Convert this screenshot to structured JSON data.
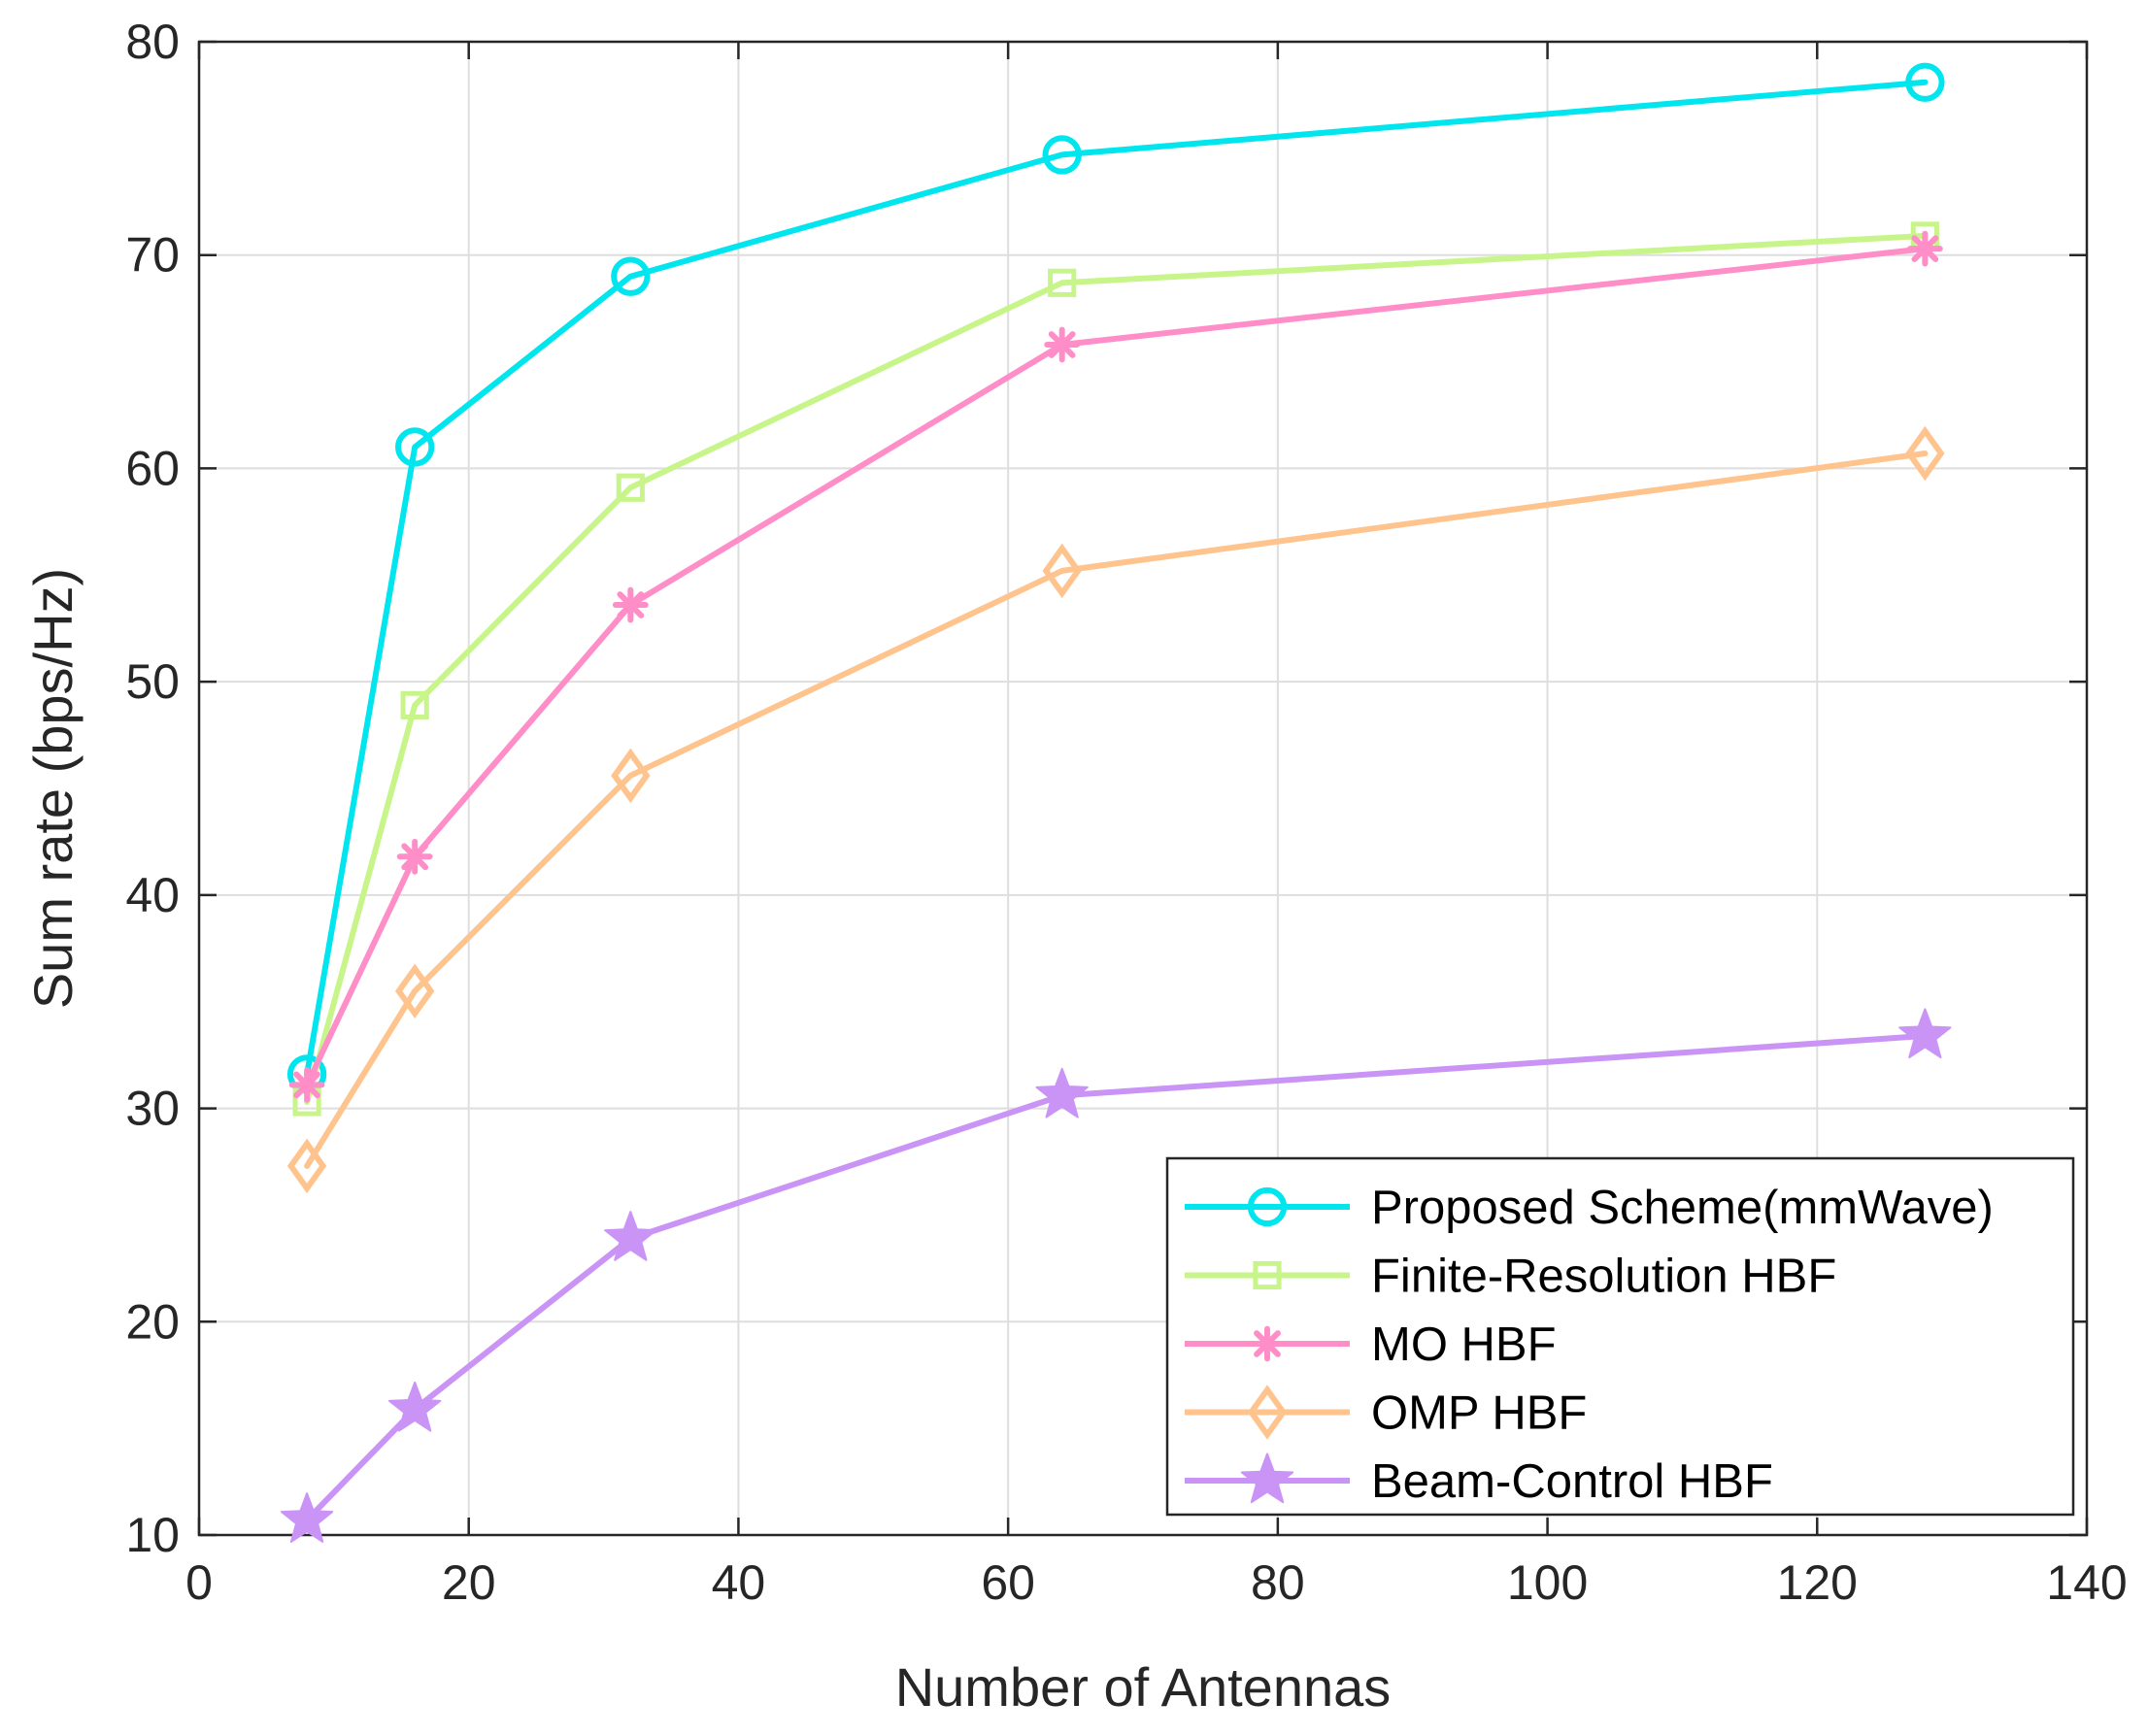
{
  "chart_data": {
    "type": "line",
    "title": "",
    "xlabel": "Number of Antennas",
    "ylabel": "Sum rate (bps/Hz)",
    "xlim": [
      0,
      140
    ],
    "ylim": [
      10,
      80
    ],
    "xticks": [
      0,
      20,
      40,
      60,
      80,
      100,
      120,
      140
    ],
    "yticks": [
      10,
      20,
      30,
      40,
      50,
      60,
      70,
      80
    ],
    "xtick_labels": [
      "0",
      "20",
      "40",
      "60",
      "80",
      "100",
      "120",
      "140"
    ],
    "ytick_labels": [
      "10",
      "20",
      "30",
      "40",
      "50",
      "60",
      "70",
      "80"
    ],
    "grid": true,
    "legend_position": "bottom-right",
    "x": [
      8,
      16,
      32,
      64,
      128
    ],
    "series": [
      {
        "name": "Proposed Scheme(mmWave)",
        "color": "#00e5ee",
        "marker": "circle",
        "values": [
          31.6,
          61.0,
          69.0,
          74.7,
          78.1
        ]
      },
      {
        "name": "Finite-Resolution HBF",
        "color": "#c8f58a",
        "marker": "square",
        "values": [
          30.3,
          48.9,
          59.1,
          68.7,
          70.9
        ]
      },
      {
        "name": "MO HBF",
        "color": "#ff8ec8",
        "marker": "asterisk",
        "values": [
          31.1,
          41.8,
          53.6,
          65.8,
          70.3
        ]
      },
      {
        "name": "OMP HBF",
        "color": "#ffc48e",
        "marker": "diamond",
        "values": [
          27.3,
          35.5,
          45.6,
          55.2,
          60.7
        ]
      },
      {
        "name": "Beam-Control HBF",
        "color": "#c994f5",
        "marker": "star",
        "values": [
          10.7,
          15.9,
          23.9,
          30.6,
          33.4
        ]
      }
    ]
  }
}
